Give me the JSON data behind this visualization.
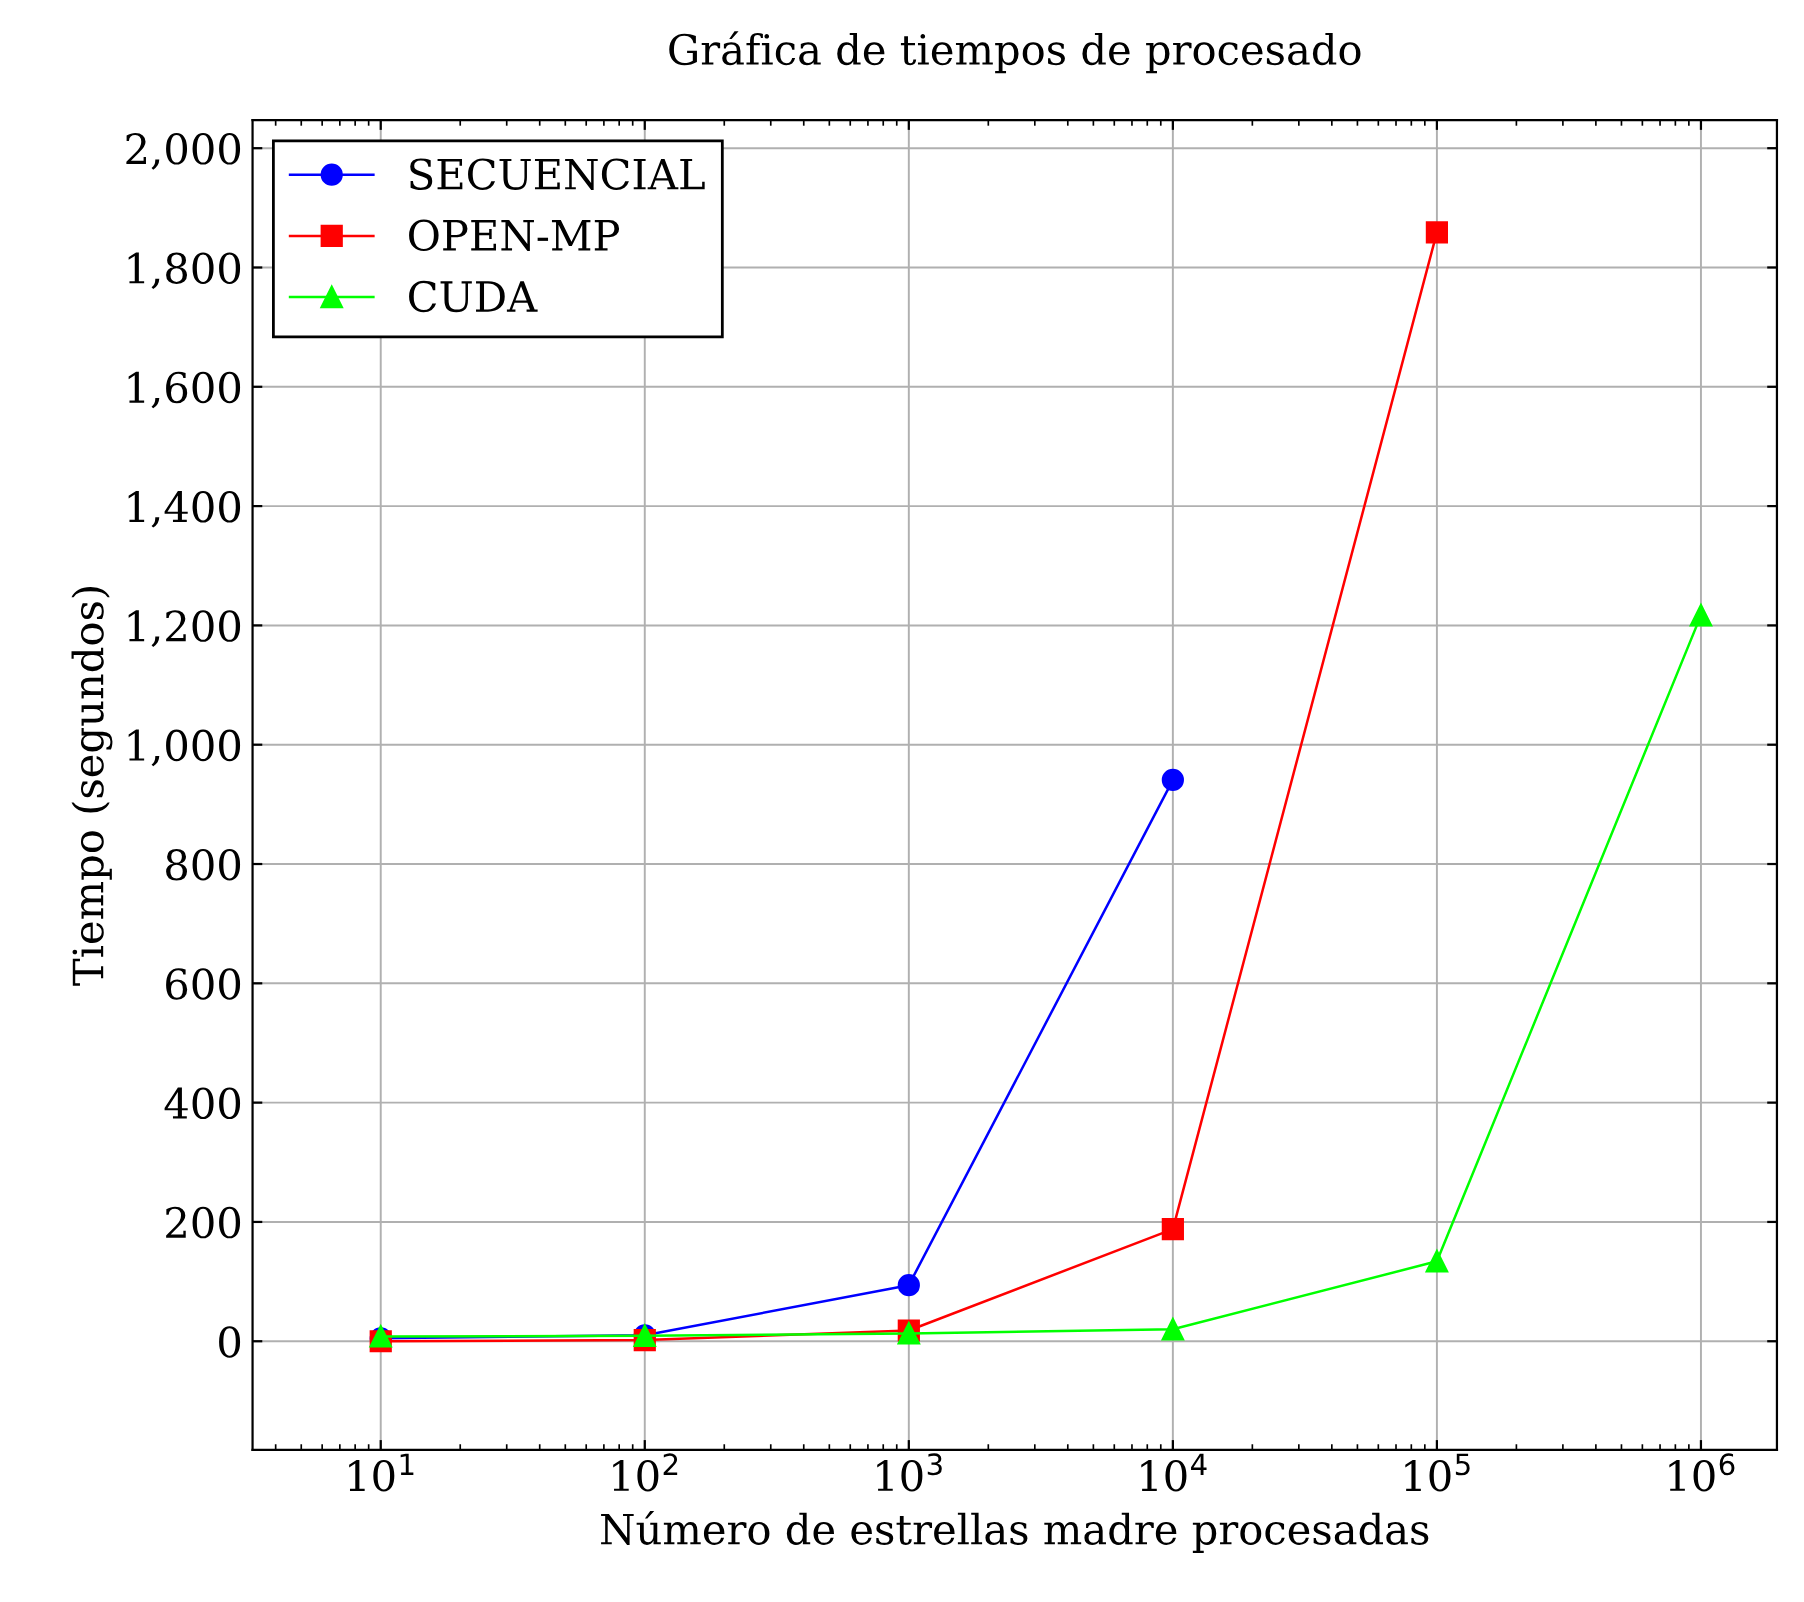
{
  "chart_data": {
    "type": "line",
    "title": "Gráfica de tiempos de procesado",
    "xlabel": "Número de estrellas madre procesadas",
    "ylabel": "Tiempo (segundos)",
    "log": "x",
    "grid": true,
    "legend": "top left",
    "line_style": "solid",
    "xlim": [
      3.27,
      1940000
    ],
    "ylim": [
      -182,
      2047
    ],
    "xticks": [
      {
        "value": 10,
        "label": "10$^{1}$"
      },
      {
        "value": 100,
        "label": "10$^{2}$"
      },
      {
        "value": 1000,
        "label": "10$^{3}$"
      },
      {
        "value": 10000,
        "label": "10$^{4}$"
      },
      {
        "value": 100000,
        "label": "10$^{5}$"
      },
      {
        "value": 1000000,
        "label": "10$^{6}$"
      }
    ],
    "yticks": [
      0,
      200,
      400,
      600,
      800,
      {
        "value": 1000,
        "label": "1,000"
      },
      {
        "value": 1200,
        "label": "1,200"
      },
      {
        "value": 1400,
        "label": "1,400"
      },
      {
        "value": 1600,
        "label": "1,600"
      },
      {
        "value": 1800,
        "label": "1,800"
      },
      {
        "value": 2000,
        "label": "2,000"
      }
    ],
    "series": [
      {
        "name": "SECUENCIAL",
        "color": "#0000ff",
        "marker": "circle",
        "x": [
          10,
          100,
          1000,
          10000
        ],
        "values": [
          5,
          10,
          94,
          941
        ]
      },
      {
        "name": "OPEN-MP",
        "color": "#ff0000",
        "marker": "square",
        "x": [
          10,
          100,
          1000,
          10000,
          100000
        ],
        "values": [
          0,
          2,
          18,
          188,
          1859
        ]
      },
      {
        "name": "CUDA",
        "color": "#00ff00",
        "marker": "triangle",
        "x": [
          10,
          100,
          1000,
          10000,
          100000,
          1000000
        ],
        "values": [
          8,
          9,
          13,
          20,
          134,
          1217
        ]
      }
    ]
  }
}
